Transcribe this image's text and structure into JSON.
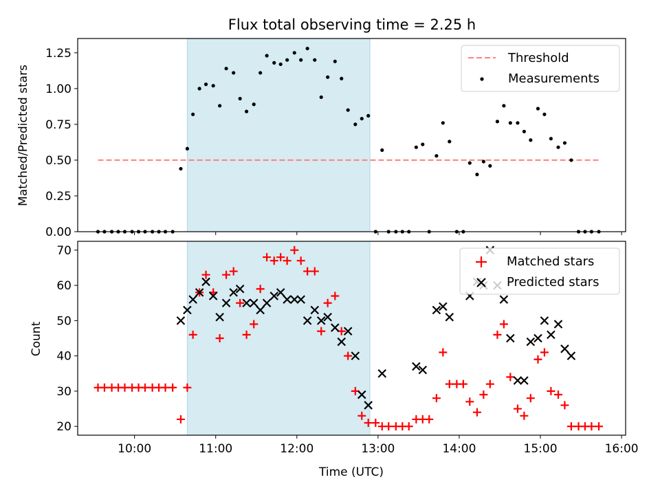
{
  "title": "Flux total observing time = 2.25 h",
  "chart_data": [
    {
      "type": "scatter",
      "ylabel": "Matched/Predicted stars",
      "ylim": [
        0,
        1.35
      ],
      "yticks": [
        "0.00",
        "0.25",
        "0.50",
        "0.75",
        "1.00",
        "1.25"
      ],
      "ytick_values": [
        0,
        0.25,
        0.5,
        0.75,
        1.0,
        1.25
      ],
      "xlim": [
        9.3,
        16.05
      ],
      "x_tick_values": [
        10,
        11,
        12,
        13,
        14,
        15,
        16
      ],
      "shaded_region": {
        "x": [
          10.65,
          12.9
        ],
        "color": "#add8e6"
      },
      "legend": {
        "position": "top-right",
        "entries": [
          {
            "label": "Threshold",
            "style": "dashed-line",
            "color": "#ff7f7f"
          },
          {
            "label": "Measurements",
            "style": "dot",
            "color": "#000000"
          }
        ]
      },
      "series": [
        {
          "name": "Threshold",
          "style": "dashed-line",
          "color": "#ff7f7f",
          "x": [
            9.55,
            15.72
          ],
          "y": [
            0.5,
            0.5
          ]
        },
        {
          "name": "Measurements",
          "style": "dot",
          "color": "#000000",
          "points": [
            [
              9.55,
              0
            ],
            [
              9.63,
              0
            ],
            [
              9.72,
              0
            ],
            [
              9.8,
              0
            ],
            [
              9.88,
              0
            ],
            [
              9.97,
              0
            ],
            [
              10.05,
              0
            ],
            [
              10.13,
              0
            ],
            [
              10.22,
              0
            ],
            [
              10.3,
              0
            ],
            [
              10.38,
              0
            ],
            [
              10.47,
              0
            ],
            [
              10.57,
              0.44
            ],
            [
              10.65,
              0.58
            ],
            [
              10.72,
              0.82
            ],
            [
              10.8,
              1.0
            ],
            [
              10.88,
              1.03
            ],
            [
              10.97,
              1.02
            ],
            [
              11.05,
              0.88
            ],
            [
              11.13,
              1.14
            ],
            [
              11.22,
              1.11
            ],
            [
              11.3,
              0.93
            ],
            [
              11.38,
              0.84
            ],
            [
              11.47,
              0.89
            ],
            [
              11.55,
              1.11
            ],
            [
              11.63,
              1.23
            ],
            [
              11.72,
              1.18
            ],
            [
              11.8,
              1.17
            ],
            [
              11.88,
              1.2
            ],
            [
              11.97,
              1.25
            ],
            [
              12.05,
              1.2
            ],
            [
              12.13,
              1.28
            ],
            [
              12.22,
              1.2
            ],
            [
              12.3,
              0.94
            ],
            [
              12.38,
              1.08
            ],
            [
              12.47,
              1.19
            ],
            [
              12.55,
              1.07
            ],
            [
              12.63,
              0.85
            ],
            [
              12.72,
              0.75
            ],
            [
              12.8,
              0.79
            ],
            [
              12.88,
              0.81
            ],
            [
              12.97,
              0
            ],
            [
              13.05,
              0.57
            ],
            [
              13.13,
              0
            ],
            [
              13.22,
              0
            ],
            [
              13.3,
              0
            ],
            [
              13.38,
              0
            ],
            [
              13.47,
              0.59
            ],
            [
              13.55,
              0.61
            ],
            [
              13.63,
              0
            ],
            [
              13.72,
              0.53
            ],
            [
              13.8,
              0.76
            ],
            [
              13.88,
              0.63
            ],
            [
              13.97,
              0
            ],
            [
              14.05,
              0
            ],
            [
              14.13,
              0.48
            ],
            [
              14.22,
              0.4
            ],
            [
              14.3,
              0.49
            ],
            [
              14.38,
              0.46
            ],
            [
              14.47,
              0.77
            ],
            [
              14.55,
              0.88
            ],
            [
              14.63,
              0.76
            ],
            [
              14.72,
              0.76
            ],
            [
              14.8,
              0.7
            ],
            [
              14.88,
              0.64
            ],
            [
              14.97,
              0.86
            ],
            [
              15.05,
              0.82
            ],
            [
              15.13,
              0.65
            ],
            [
              15.22,
              0.59
            ],
            [
              15.3,
              0.62
            ],
            [
              15.38,
              0.5
            ],
            [
              15.47,
              0
            ],
            [
              15.55,
              0
            ],
            [
              15.63,
              0
            ],
            [
              15.72,
              0
            ]
          ]
        }
      ]
    },
    {
      "type": "scatter",
      "xlabel": "Time (UTC)",
      "ylabel": "Count",
      "ylim": [
        17.5,
        72.5
      ],
      "yticks": [
        "20",
        "30",
        "40",
        "50",
        "60",
        "70"
      ],
      "ytick_values": [
        20,
        30,
        40,
        50,
        60,
        70
      ],
      "xlim": [
        9.3,
        16.05
      ],
      "xticks": [
        "10:00",
        "11:00",
        "12:00",
        "13:00",
        "14:00",
        "15:00",
        "16:00"
      ],
      "x_tick_values": [
        10,
        11,
        12,
        13,
        14,
        15,
        16
      ],
      "shaded_region": {
        "x": [
          10.65,
          12.9
        ],
        "color": "#add8e6"
      },
      "legend": {
        "position": "top-right",
        "entries": [
          {
            "label": "Matched stars",
            "style": "plus",
            "color": "#ff0000"
          },
          {
            "label": "Predicted stars",
            "style": "x",
            "color": "#000000"
          }
        ]
      },
      "series": [
        {
          "name": "Matched stars",
          "style": "plus",
          "color": "#ff0000",
          "points": [
            [
              9.55,
              31
            ],
            [
              9.63,
              31
            ],
            [
              9.72,
              31
            ],
            [
              9.8,
              31
            ],
            [
              9.88,
              31
            ],
            [
              9.97,
              31
            ],
            [
              10.05,
              31
            ],
            [
              10.13,
              31
            ],
            [
              10.22,
              31
            ],
            [
              10.3,
              31
            ],
            [
              10.38,
              31
            ],
            [
              10.47,
              31
            ],
            [
              10.57,
              22
            ],
            [
              10.65,
              31
            ],
            [
              10.72,
              46
            ],
            [
              10.8,
              58
            ],
            [
              10.88,
              63
            ],
            [
              10.97,
              58
            ],
            [
              11.05,
              45
            ],
            [
              11.13,
              63
            ],
            [
              11.22,
              64
            ],
            [
              11.3,
              55
            ],
            [
              11.38,
              46
            ],
            [
              11.47,
              49
            ],
            [
              11.55,
              59
            ],
            [
              11.63,
              68
            ],
            [
              11.72,
              67
            ],
            [
              11.8,
              68
            ],
            [
              11.88,
              67
            ],
            [
              11.97,
              70
            ],
            [
              12.05,
              67
            ],
            [
              12.13,
              64
            ],
            [
              12.22,
              64
            ],
            [
              12.3,
              47
            ],
            [
              12.38,
              55
            ],
            [
              12.47,
              57
            ],
            [
              12.55,
              47
            ],
            [
              12.63,
              40
            ],
            [
              12.72,
              30
            ],
            [
              12.8,
              23
            ],
            [
              12.88,
              21
            ],
            [
              12.97,
              21
            ],
            [
              13.05,
              20
            ],
            [
              13.13,
              20
            ],
            [
              13.22,
              20
            ],
            [
              13.3,
              20
            ],
            [
              13.38,
              20
            ],
            [
              13.47,
              22
            ],
            [
              13.55,
              22
            ],
            [
              13.63,
              22
            ],
            [
              13.72,
              28
            ],
            [
              13.8,
              41
            ],
            [
              13.88,
              32
            ],
            [
              13.97,
              32
            ],
            [
              14.05,
              32
            ],
            [
              14.13,
              27
            ],
            [
              14.22,
              24
            ],
            [
              14.3,
              29
            ],
            [
              14.38,
              32
            ],
            [
              14.47,
              46
            ],
            [
              14.55,
              49
            ],
            [
              14.63,
              34
            ],
            [
              14.72,
              25
            ],
            [
              14.8,
              23
            ],
            [
              14.88,
              28
            ],
            [
              14.97,
              39
            ],
            [
              15.05,
              41
            ],
            [
              15.13,
              30
            ],
            [
              15.22,
              29
            ],
            [
              15.3,
              26
            ],
            [
              15.38,
              20
            ],
            [
              15.47,
              20
            ],
            [
              15.55,
              20
            ],
            [
              15.63,
              20
            ],
            [
              15.72,
              20
            ]
          ]
        },
        {
          "name": "Predicted stars",
          "style": "x",
          "color": "#000000",
          "points": [
            [
              10.57,
              50
            ],
            [
              10.65,
              53
            ],
            [
              10.72,
              56
            ],
            [
              10.8,
              58
            ],
            [
              10.88,
              61
            ],
            [
              10.97,
              57
            ],
            [
              11.05,
              51
            ],
            [
              11.13,
              55
            ],
            [
              11.22,
              58
            ],
            [
              11.3,
              59
            ],
            [
              11.38,
              55
            ],
            [
              11.47,
              55
            ],
            [
              11.55,
              53
            ],
            [
              11.63,
              55
            ],
            [
              11.72,
              57
            ],
            [
              11.8,
              58
            ],
            [
              11.88,
              56
            ],
            [
              11.97,
              56
            ],
            [
              12.05,
              56
            ],
            [
              12.13,
              50
            ],
            [
              12.22,
              53
            ],
            [
              12.3,
              50
            ],
            [
              12.38,
              51
            ],
            [
              12.47,
              48
            ],
            [
              12.55,
              44
            ],
            [
              12.63,
              47
            ],
            [
              12.72,
              40
            ],
            [
              12.8,
              29
            ],
            [
              12.88,
              26
            ],
            [
              13.05,
              35
            ],
            [
              13.47,
              37
            ],
            [
              13.55,
              36
            ],
            [
              13.72,
              53
            ],
            [
              13.8,
              54
            ],
            [
              13.88,
              51
            ],
            [
              14.13,
              57
            ],
            [
              14.22,
              61
            ],
            [
              14.3,
              60
            ],
            [
              14.38,
              70
            ],
            [
              14.47,
              60
            ],
            [
              14.55,
              56
            ],
            [
              14.63,
              45
            ],
            [
              14.72,
              33
            ],
            [
              14.8,
              33
            ],
            [
              14.88,
              44
            ],
            [
              14.97,
              45
            ],
            [
              15.05,
              50
            ],
            [
              15.13,
              46
            ],
            [
              15.22,
              49
            ],
            [
              15.3,
              42
            ],
            [
              15.38,
              40
            ]
          ]
        }
      ]
    }
  ]
}
